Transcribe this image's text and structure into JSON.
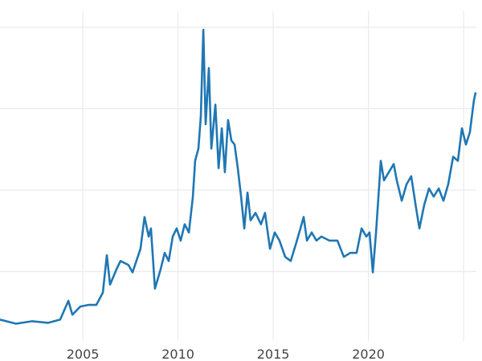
{
  "chart_data": {
    "type": "line",
    "title": "",
    "xlabel": "",
    "ylabel": "",
    "grid": true,
    "xlim": [
      2000.65,
      2025.67
    ],
    "ylim": [
      0,
      44
    ],
    "x_ticks": [
      2005,
      2010,
      2015,
      2020,
      2025
    ],
    "x_tick_labels": [
      "2005",
      "2010",
      "2015",
      "2020",
      ""
    ],
    "y_gridlines": [
      10,
      20,
      30,
      40
    ],
    "color": "#1f77b4",
    "series": [
      {
        "x": [
          2000.65,
          2001.49,
          2002.34,
          2003.18,
          2003.81,
          2004.24,
          2004.45,
          2004.87,
          2005.29,
          2005.71,
          2006.05,
          2006.26,
          2006.43,
          2006.77,
          2006.98,
          2007.4,
          2007.61,
          2008.03,
          2008.24,
          2008.46,
          2008.58,
          2008.79,
          2009.09,
          2009.3,
          2009.51,
          2009.72,
          2009.93,
          2010.14,
          2010.35,
          2010.57,
          2010.78,
          2010.9,
          2011.07,
          2011.2,
          2011.33,
          2011.45,
          2011.62,
          2011.75,
          2011.96,
          2012.13,
          2012.3,
          2012.46,
          2012.63,
          2012.8,
          2012.97,
          2013.14,
          2013.31,
          2013.48,
          2013.65,
          2013.81,
          2014.07,
          2014.36,
          2014.57,
          2014.83,
          2015.08,
          2015.33,
          2015.63,
          2015.92,
          2016.18,
          2016.43,
          2016.6,
          2016.77,
          2017.02,
          2017.27,
          2017.53,
          2017.95,
          2018.37,
          2018.71,
          2019.05,
          2019.38,
          2019.64,
          2019.89,
          2020.06,
          2020.23,
          2020.4,
          2020.57,
          2020.65,
          2020.82,
          2021.07,
          2021.33,
          2021.49,
          2021.75,
          2022.0,
          2022.25,
          2022.51,
          2022.68,
          2022.93,
          2023.18,
          2023.43,
          2023.69,
          2023.94,
          2024.19,
          2024.45,
          2024.7,
          2024.91,
          2025.12,
          2025.33,
          2025.54,
          2025.63
        ],
        "values": [
          4.1,
          3.6,
          3.9,
          3.7,
          4.1,
          6.4,
          4.7,
          5.7,
          5.9,
          5.9,
          7.4,
          12.0,
          8.4,
          10.3,
          11.3,
          10.8,
          9.9,
          12.8,
          16.7,
          14.3,
          15.3,
          7.9,
          10.3,
          12.3,
          11.3,
          14.3,
          15.3,
          13.8,
          15.8,
          14.8,
          19.2,
          23.6,
          25.1,
          29.1,
          39.7,
          28.1,
          35.0,
          25.1,
          30.5,
          22.7,
          27.6,
          22.2,
          28.6,
          26.1,
          25.6,
          22.7,
          19.2,
          15.3,
          19.7,
          16.3,
          17.2,
          15.8,
          17.2,
          12.8,
          14.8,
          13.8,
          11.8,
          11.3,
          13.3,
          15.3,
          16.7,
          13.8,
          14.8,
          13.8,
          14.3,
          13.8,
          13.8,
          11.8,
          12.3,
          12.3,
          15.3,
          14.3,
          14.8,
          9.9,
          14.8,
          20.7,
          23.6,
          21.2,
          22.2,
          23.2,
          21.2,
          18.7,
          20.7,
          21.7,
          17.7,
          15.3,
          18.2,
          20.2,
          19.2,
          20.2,
          18.7,
          20.7,
          24.1,
          23.6,
          27.6,
          25.6,
          27.1,
          31.0,
          32.0
        ]
      }
    ]
  }
}
